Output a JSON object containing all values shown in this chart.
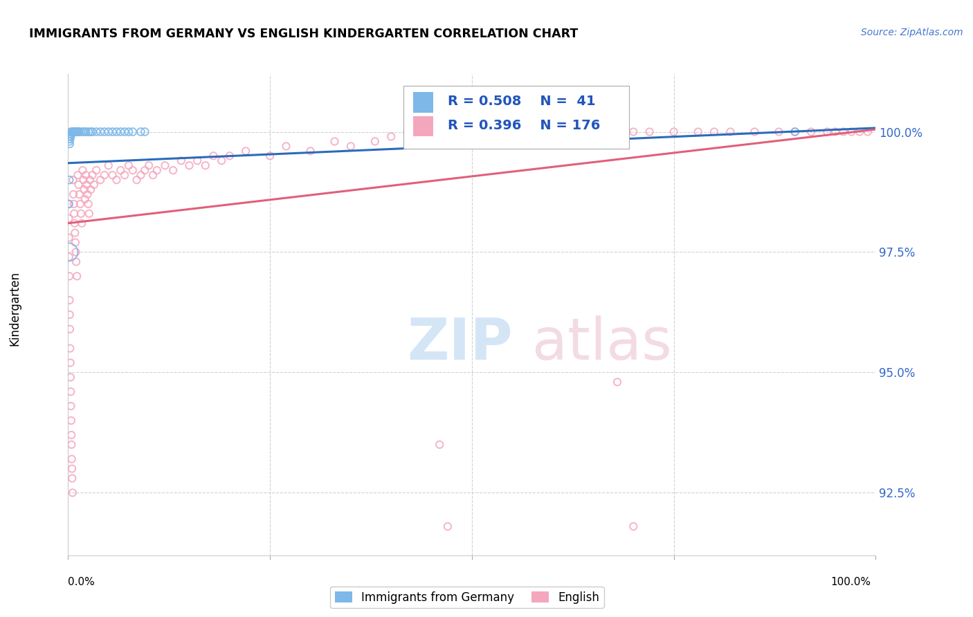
{
  "title": "IMMIGRANTS FROM GERMANY VS ENGLISH KINDERGARTEN CORRELATION CHART",
  "source": "Source: ZipAtlas.com",
  "ylabel": "Kindergarten",
  "ytick_labels": [
    "92.5%",
    "95.0%",
    "97.5%",
    "100.0%"
  ],
  "ytick_values": [
    92.5,
    95.0,
    97.5,
    100.0
  ],
  "xlim": [
    0.0,
    100.0
  ],
  "ylim": [
    91.2,
    101.2
  ],
  "legend_R_blue": "R = 0.508",
  "legend_N_blue": "N =  41",
  "legend_R_pink": "R = 0.396",
  "legend_N_pink": "N = 176",
  "legend_label_blue": "Immigrants from Germany",
  "legend_label_pink": "English",
  "blue_color": "#7db8e8",
  "pink_color": "#f4a7bc",
  "blue_line_color": "#2a6bbd",
  "pink_line_color": "#e0607a",
  "blue_line_y_start": 99.35,
  "blue_line_y_end": 100.08,
  "pink_line_y_start": 98.1,
  "pink_line_y_end": 100.05,
  "blue_scatter": [
    [
      0.05,
      99.95
    ],
    [
      0.08,
      99.9
    ],
    [
      0.12,
      99.85
    ],
    [
      0.15,
      99.8
    ],
    [
      0.2,
      99.75
    ],
    [
      0.25,
      99.85
    ],
    [
      0.3,
      99.9
    ],
    [
      0.35,
      100.0
    ],
    [
      0.4,
      99.95
    ],
    [
      0.5,
      100.0
    ],
    [
      0.6,
      100.0
    ],
    [
      0.7,
      100.0
    ],
    [
      0.8,
      100.0
    ],
    [
      0.9,
      100.0
    ],
    [
      1.0,
      100.0
    ],
    [
      1.1,
      100.0
    ],
    [
      1.2,
      100.0
    ],
    [
      1.3,
      100.0
    ],
    [
      1.5,
      100.0
    ],
    [
      1.8,
      100.0
    ],
    [
      2.0,
      100.0
    ],
    [
      2.2,
      100.0
    ],
    [
      2.5,
      100.0
    ],
    [
      2.8,
      100.0
    ],
    [
      3.0,
      100.0
    ],
    [
      3.5,
      100.0
    ],
    [
      4.0,
      100.0
    ],
    [
      4.5,
      100.0
    ],
    [
      5.0,
      100.0
    ],
    [
      5.5,
      100.0
    ],
    [
      6.0,
      100.0
    ],
    [
      6.5,
      100.0
    ],
    [
      7.0,
      100.0
    ],
    [
      7.5,
      100.0
    ],
    [
      8.0,
      100.0
    ],
    [
      9.0,
      100.0
    ],
    [
      9.5,
      100.0
    ],
    [
      0.15,
      99.0
    ],
    [
      0.1,
      98.5
    ],
    [
      90.0,
      100.0
    ],
    [
      0.08,
      97.5
    ]
  ],
  "blue_scatter_sizes": [
    60,
    60,
    60,
    60,
    60,
    60,
    60,
    60,
    60,
    60,
    60,
    60,
    60,
    60,
    60,
    60,
    60,
    60,
    60,
    60,
    60,
    60,
    60,
    60,
    60,
    60,
    60,
    60,
    60,
    60,
    60,
    60,
    60,
    60,
    60,
    60,
    60,
    60,
    60,
    60,
    350
  ],
  "pink_scatter": [
    [
      0.05,
      98.5
    ],
    [
      0.08,
      98.2
    ],
    [
      0.1,
      97.8
    ],
    [
      0.12,
      97.4
    ],
    [
      0.15,
      97.0
    ],
    [
      0.18,
      96.5
    ],
    [
      0.2,
      96.2
    ],
    [
      0.22,
      95.9
    ],
    [
      0.25,
      95.5
    ],
    [
      0.28,
      95.2
    ],
    [
      0.3,
      94.9
    ],
    [
      0.33,
      94.6
    ],
    [
      0.35,
      94.3
    ],
    [
      0.38,
      94.0
    ],
    [
      0.4,
      93.7
    ],
    [
      0.42,
      93.5
    ],
    [
      0.45,
      93.2
    ],
    [
      0.48,
      93.0
    ],
    [
      0.5,
      92.8
    ],
    [
      0.55,
      92.5
    ],
    [
      0.6,
      99.0
    ],
    [
      0.65,
      98.7
    ],
    [
      0.7,
      98.5
    ],
    [
      0.75,
      98.3
    ],
    [
      0.8,
      98.1
    ],
    [
      0.85,
      97.9
    ],
    [
      0.9,
      97.7
    ],
    [
      0.95,
      97.5
    ],
    [
      1.0,
      97.3
    ],
    [
      1.1,
      97.0
    ],
    [
      1.2,
      99.1
    ],
    [
      1.3,
      98.9
    ],
    [
      1.4,
      98.7
    ],
    [
      1.5,
      98.5
    ],
    [
      1.6,
      98.3
    ],
    [
      1.7,
      98.1
    ],
    [
      1.8,
      99.2
    ],
    [
      1.9,
      99.0
    ],
    [
      2.0,
      98.8
    ],
    [
      2.1,
      98.6
    ],
    [
      2.2,
      99.1
    ],
    [
      2.3,
      98.9
    ],
    [
      2.4,
      98.7
    ],
    [
      2.5,
      98.5
    ],
    [
      2.6,
      98.3
    ],
    [
      2.7,
      99.0
    ],
    [
      2.8,
      98.8
    ],
    [
      3.0,
      99.1
    ],
    [
      3.2,
      98.9
    ],
    [
      3.5,
      99.2
    ],
    [
      4.0,
      99.0
    ],
    [
      4.5,
      99.1
    ],
    [
      5.0,
      99.3
    ],
    [
      5.5,
      99.1
    ],
    [
      6.0,
      99.0
    ],
    [
      6.5,
      99.2
    ],
    [
      7.0,
      99.1
    ],
    [
      7.5,
      99.3
    ],
    [
      8.0,
      99.2
    ],
    [
      8.5,
      99.0
    ],
    [
      9.0,
      99.1
    ],
    [
      9.5,
      99.2
    ],
    [
      10.0,
      99.3
    ],
    [
      10.5,
      99.1
    ],
    [
      11.0,
      99.2
    ],
    [
      12.0,
      99.3
    ],
    [
      13.0,
      99.2
    ],
    [
      14.0,
      99.4
    ],
    [
      15.0,
      99.3
    ],
    [
      16.0,
      99.4
    ],
    [
      17.0,
      99.3
    ],
    [
      18.0,
      99.5
    ],
    [
      19.0,
      99.4
    ],
    [
      20.0,
      99.5
    ],
    [
      22.0,
      99.6
    ],
    [
      25.0,
      99.5
    ],
    [
      27.0,
      99.7
    ],
    [
      30.0,
      99.6
    ],
    [
      33.0,
      99.8
    ],
    [
      35.0,
      99.7
    ],
    [
      38.0,
      99.8
    ],
    [
      40.0,
      99.9
    ],
    [
      42.0,
      100.0
    ],
    [
      45.0,
      99.9
    ],
    [
      48.0,
      100.0
    ],
    [
      50.0,
      100.0
    ],
    [
      52.0,
      100.0
    ],
    [
      55.0,
      100.0
    ],
    [
      58.0,
      100.0
    ],
    [
      60.0,
      100.0
    ],
    [
      62.0,
      100.0
    ],
    [
      65.0,
      100.0
    ],
    [
      68.0,
      100.0
    ],
    [
      70.0,
      100.0
    ],
    [
      72.0,
      100.0
    ],
    [
      75.0,
      100.0
    ],
    [
      78.0,
      100.0
    ],
    [
      80.0,
      100.0
    ],
    [
      82.0,
      100.0
    ],
    [
      85.0,
      100.0
    ],
    [
      88.0,
      100.0
    ],
    [
      90.0,
      100.0
    ],
    [
      92.0,
      100.0
    ],
    [
      94.0,
      100.0
    ],
    [
      95.0,
      100.0
    ],
    [
      96.0,
      100.0
    ],
    [
      97.0,
      100.0
    ],
    [
      98.0,
      100.0
    ],
    [
      99.0,
      100.0
    ],
    [
      46.0,
      93.5
    ],
    [
      68.0,
      94.8
    ],
    [
      47.0,
      91.8
    ],
    [
      70.0,
      91.8
    ]
  ]
}
